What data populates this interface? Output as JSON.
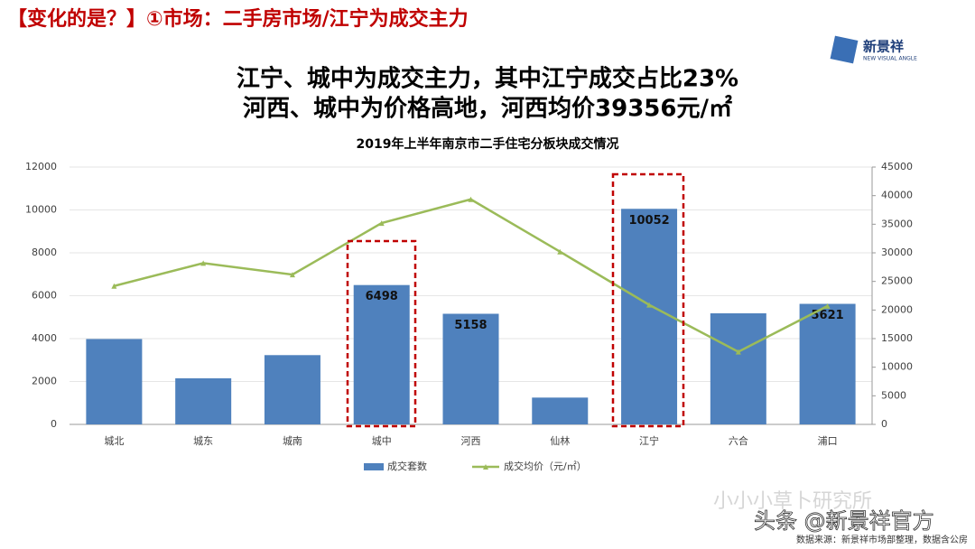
{
  "header": {
    "title": "【变化的是？】①市场：二手房市场/江宁为成交主力",
    "logo": "新景祥",
    "logo_sub": "NEW VISUAL ANGLE"
  },
  "headline": [
    "江宁、城中为成交主力，其中江宁成交占比23%",
    "河西、城中为价格高地，河西均价39356元/㎡"
  ],
  "footer": {
    "watermark_faint": "小小小草卜研究所",
    "watermark": "头条 @新景祥官方",
    "source": "数据来源：新景祥市场部整理，数据含公房"
  },
  "chart_data": {
    "type": "bar-line",
    "title": "2019年上半年南京市二手住宅分板块成交情况",
    "categories": [
      "城北",
      "城东",
      "城南",
      "城中",
      "河西",
      "仙林",
      "江宁",
      "六合",
      "浦口"
    ],
    "series": [
      {
        "name": "成交套数",
        "type": "bar",
        "color": "#4f81bd",
        "values": [
          3980,
          2150,
          3230,
          6498,
          5158,
          1250,
          10052,
          5180,
          5621
        ],
        "value_labels": [
          null,
          null,
          null,
          "6498",
          "5158",
          null,
          "10052",
          null,
          "5621"
        ]
      },
      {
        "name": "成交均价（元/㎡）",
        "type": "line",
        "axis": "y2",
        "color": "#9bbb59",
        "values": [
          24200,
          28200,
          26200,
          35200,
          39356,
          30200,
          20900,
          12700,
          20700
        ]
      }
    ],
    "ylim": [
      0,
      12000
    ],
    "yticks": [
      0,
      2000,
      4000,
      6000,
      8000,
      10000,
      12000
    ],
    "y2lim": [
      0,
      45000
    ],
    "y2ticks": [
      0,
      5000,
      10000,
      15000,
      20000,
      25000,
      30000,
      35000,
      40000,
      45000
    ],
    "grid": true
  }
}
